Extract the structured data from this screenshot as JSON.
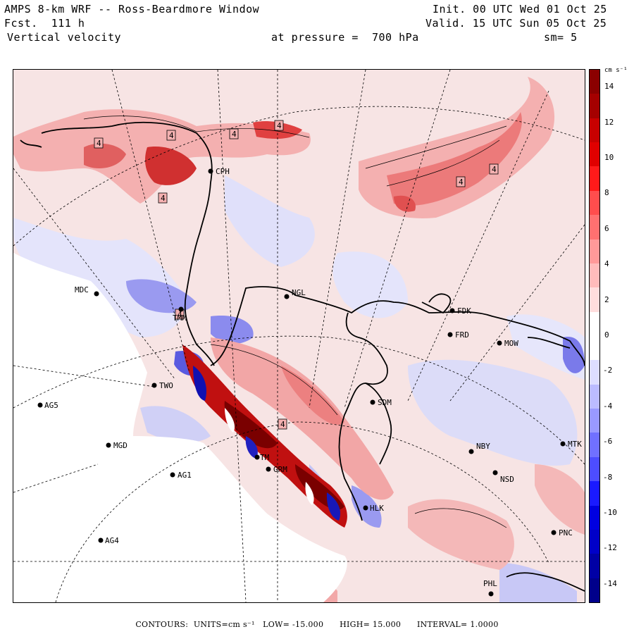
{
  "header": {
    "title_line": "AMPS 8-km WRF -- Ross-Beardmore Window",
    "fcst_line": "Fcst.  111 h",
    "field_line": "Vertical velocity",
    "init_line": "Init. 00 UTC Wed 01 Oct 25",
    "valid_line": "Valid. 15 UTC Sun 05 Oct 25",
    "pressure_line": "at pressure =  700 hPa",
    "smooth_line": "sm= 5"
  },
  "colorbar": {
    "unit": "cm s⁻¹",
    "labels": [
      "14",
      "12",
      "10",
      "8",
      "6",
      "4",
      "2",
      "0",
      "-2",
      "-4",
      "-6",
      "-8",
      "-10",
      "-12",
      "-14"
    ],
    "colors": [
      "#8b0000",
      "#a50000",
      "#c80000",
      "#e00000",
      "#ff1a1a",
      "#ff4d4d",
      "#ff7070",
      "#ff9999",
      "#ffbbbb",
      "#ffdddd",
      "#ffffff",
      "#ffffff",
      "#ddddff",
      "#bbbbff",
      "#9999ff",
      "#7070ff",
      "#4d4dff",
      "#1a1aff",
      "#0000e0",
      "#0000c8",
      "#0000a5",
      "#00008b"
    ]
  },
  "stations": [
    {
      "name": "CPH"
    },
    {
      "name": "MDC"
    },
    {
      "name": "NGL"
    },
    {
      "name": "FDK"
    },
    {
      "name": "FRD"
    },
    {
      "name": "MOW"
    },
    {
      "name": "AG5"
    },
    {
      "name": "TWO"
    },
    {
      "name": "SDM"
    },
    {
      "name": "MGD"
    },
    {
      "name": "NBY"
    },
    {
      "name": "MTK"
    },
    {
      "name": "AG1"
    },
    {
      "name": "GRM"
    },
    {
      "name": "NSD"
    },
    {
      "name": "AG4"
    },
    {
      "name": "PNC"
    },
    {
      "name": "PHL"
    },
    {
      "name": "HLK"
    },
    {
      "name": "TMM"
    },
    {
      "name": "TM"
    }
  ],
  "contour_labels": [
    "4",
    "4",
    "4",
    "4",
    "4",
    "4",
    "4",
    "4",
    "4"
  ],
  "footer": {
    "contours_label": "CONTOURS:",
    "units_label": "UNITS=cm s⁻¹",
    "low_label": "LOW= -15.000",
    "high_label": "HIGH= 15.000",
    "interval_label": "INTERVAL= 1.0000"
  },
  "colors": {
    "positive": "#f4a0a0",
    "strong_positive": "#e03030",
    "negative": "#b8b8f4",
    "strong_negative": "#2a2ad0",
    "no_data": "#ffffff"
  }
}
